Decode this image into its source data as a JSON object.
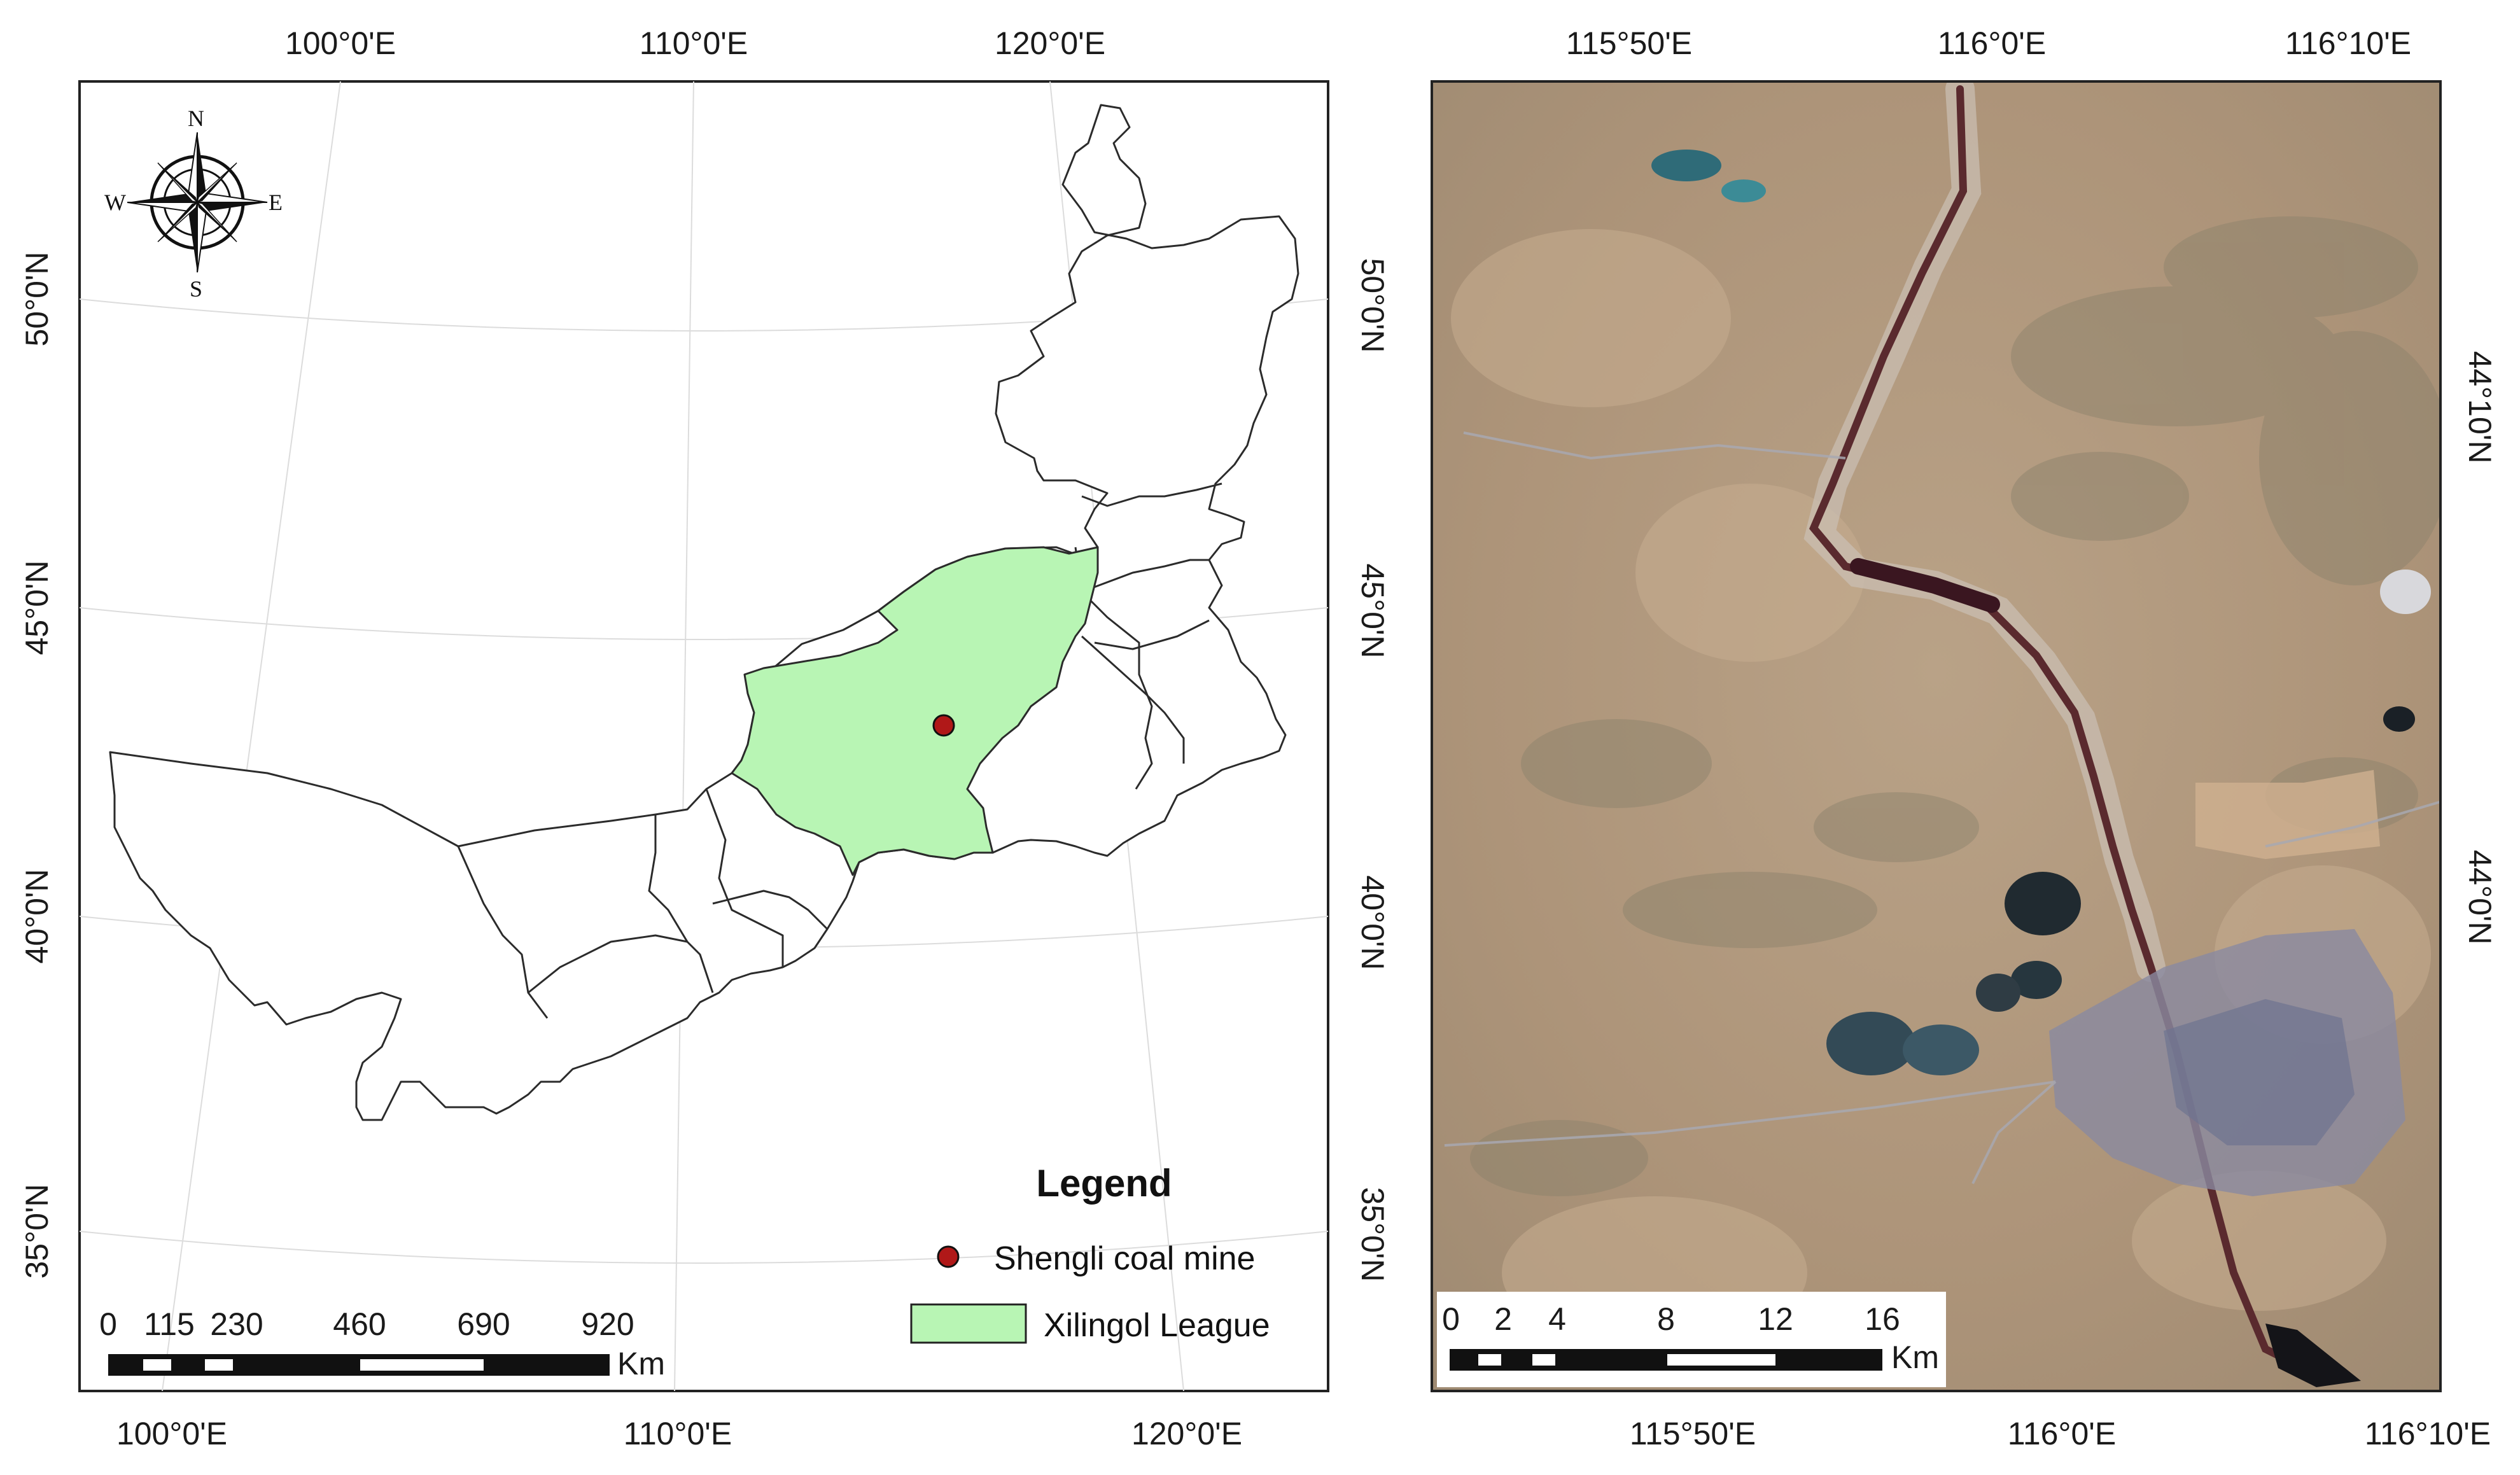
{
  "left_map": {
    "top_lon_labels": [
      "100°0'E",
      "110°0'E",
      "120°0'E"
    ],
    "bottom_lon_labels": [
      "100°0'E",
      "110°0'E",
      "120°0'E"
    ],
    "left_lat_labels": [
      "50°0'N",
      "45°0'N",
      "40°0'N",
      "35°0'N"
    ],
    "right_lat_labels": [
      "50°0'N",
      "45°0'N",
      "40°0'N",
      "35°0'N"
    ],
    "compass": {
      "n": "N",
      "s": "S",
      "e": "E",
      "w": "W"
    },
    "legend": {
      "title": "Legend",
      "items": [
        {
          "label": "Shengli coal mine",
          "symbol": "point",
          "color": "#b01818"
        },
        {
          "label": "Xilingol League",
          "symbol": "polygon",
          "color": "#b8f5b4"
        }
      ]
    },
    "scale_bar": {
      "ticks": [
        "0",
        "115",
        "230",
        "460",
        "690",
        "920"
      ],
      "unit": "Km"
    },
    "colors": {
      "outline": "#2b2b2b",
      "highlight": "#b8f5b4",
      "graticule": "#dcdcdc"
    }
  },
  "right_map": {
    "top_lon_labels": [
      "115°50'E",
      "116°0'E",
      "116°10'E"
    ],
    "bottom_lon_labels": [
      "115°50'E",
      "116°0'E",
      "116°10'E"
    ],
    "right_lat_labels": [
      "44°10'N",
      "44°0'N"
    ],
    "scale_bar": {
      "ticks": [
        "0",
        "2",
        "4",
        "8",
        "12",
        "16"
      ],
      "unit": "Km"
    },
    "colors": {
      "terrain": "#b39a80",
      "river": "#5a2a2e",
      "mine_water": "#2f6b78",
      "urban": "#8a8aa0"
    }
  }
}
